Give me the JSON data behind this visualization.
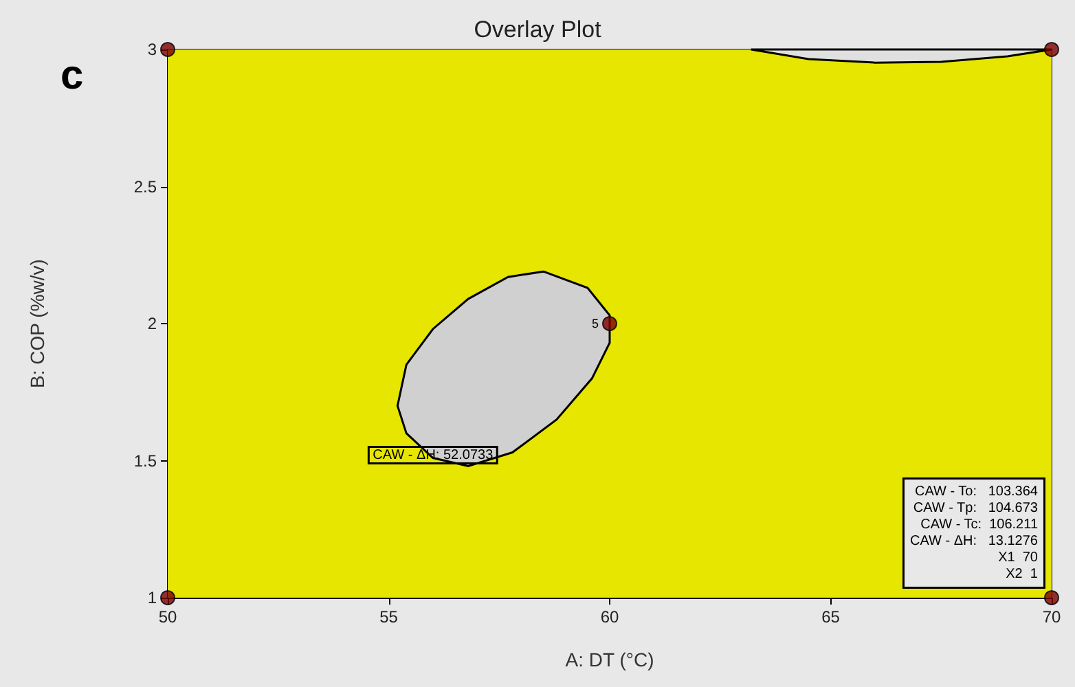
{
  "chart_data": {
    "type": "scatter",
    "title": "Overlay Plot",
    "xlabel": "A: DT (°C)",
    "ylabel": "B: COP (%w/v)",
    "xlim": [
      50,
      70
    ],
    "xticks": [
      50,
      55,
      60,
      65,
      70
    ],
    "ylim": [
      1,
      3
    ],
    "yticks": [
      1,
      1.5,
      2,
      2.5,
      3
    ],
    "grid": false,
    "bands": [
      {
        "axis": "x",
        "from": 50,
        "to": 70,
        "color": "#e6e600"
      }
    ],
    "series": [
      {
        "type": "area",
        "color": "#d0d0d0",
        "x": [
          58.5,
          59.5,
          60.0,
          60.0,
          59.6,
          58.8,
          57.8,
          56.8,
          56.0,
          55.4,
          55.2,
          55.4,
          56.0,
          56.8,
          57.7,
          58.5
        ],
        "values": [
          2.19,
          2.13,
          2.03,
          1.93,
          1.8,
          1.65,
          1.53,
          1.48,
          1.51,
          1.6,
          1.7,
          1.85,
          1.98,
          2.09,
          2.17,
          2.19
        ]
      },
      {
        "type": "area",
        "color": "#e0e0e0",
        "x": [
          63.2,
          64.5,
          66,
          67.5,
          69,
          70
        ],
        "values": [
          3,
          2.965,
          2.952,
          2.955,
          2.975,
          3
        ]
      },
      {
        "marker": "circle",
        "color": "#7a0000",
        "x": [
          50,
          50,
          70,
          70,
          60
        ],
        "values": [
          1,
          3,
          3,
          1,
          2
        ]
      }
    ],
    "annotations": [
      "c",
      {
        "text": "5",
        "x": 60,
        "y": 2
      },
      {
        "text": "CAW - ΔH: 52.0733",
        "x": 56,
        "y": 1.52
      },
      {
        "text": "CAW - To:   103.364\nCAW - Tp:   104.673\nCAW - Tc:  106.211\nCAW - ΔH:   13.1276\nX1  70\nX2  1",
        "x": 70,
        "y": 1
      }
    ]
  }
}
